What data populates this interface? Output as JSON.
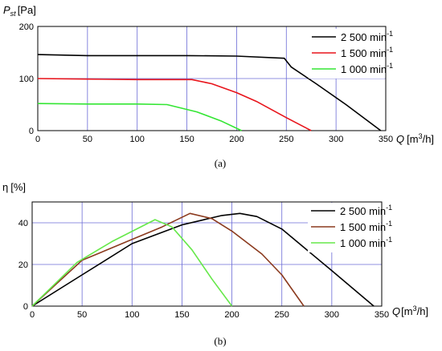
{
  "chart_data": [
    {
      "type": "line",
      "caption": "(a)",
      "ylabel": {
        "symbol": "P",
        "sub": "st",
        "unit": "[Pa]"
      },
      "xlabel": {
        "symbol": "Q",
        "unit_pre": "[m",
        "unit_sup": "3",
        "unit_post": "/h]"
      },
      "xlim": [
        0,
        350
      ],
      "ylim": [
        0,
        200
      ],
      "xticks": [
        "0",
        "50",
        "100",
        "150",
        "200",
        "250",
        "300",
        "350"
      ],
      "yticks": [
        "0",
        "100",
        "200"
      ],
      "legend_position": "top-right",
      "series": [
        {
          "name": "2 500 min",
          "sup": "-1",
          "color": "#000000",
          "x": [
            0,
            50,
            100,
            150,
            200,
            248,
            255,
            280,
            310,
            345
          ],
          "y": [
            146,
            144,
            144,
            144,
            143,
            139,
            122,
            90,
            50,
            0
          ]
        },
        {
          "name": "1 500 min",
          "sup": "-1",
          "color": "#e8141b",
          "x": [
            0,
            50,
            100,
            155,
            175,
            200,
            220,
            250,
            275
          ],
          "y": [
            100,
            99,
            98,
            98,
            90,
            73,
            56,
            25,
            0
          ]
        },
        {
          "name": "1 000 min",
          "sup": "-1",
          "color": "#33e633",
          "x": [
            0,
            50,
            100,
            130,
            160,
            185,
            205
          ],
          "y": [
            52,
            51,
            51,
            50,
            36,
            18,
            0
          ]
        }
      ]
    },
    {
      "type": "line",
      "caption": "(b)",
      "ylabel": {
        "symbol": "η",
        "unit": "[%]"
      },
      "xlabel": {
        "symbol": "Q",
        "unit_pre": "[m",
        "unit_sup": "3",
        "unit_post": "/h]"
      },
      "xlim": [
        0,
        350
      ],
      "ylim": [
        0,
        50
      ],
      "xticks": [
        "0",
        "50",
        "100",
        "150",
        "200",
        "250",
        "300",
        "350"
      ],
      "yticks": [
        "0",
        "20",
        "40"
      ],
      "legend_position": "top-right",
      "series": [
        {
          "name": "2 500 min",
          "sup": "-1",
          "color": "#000000",
          "x": [
            0,
            50,
            100,
            150,
            190,
            208,
            225,
            250,
            300,
            342
          ],
          "y": [
            0,
            15,
            30,
            39,
            43.5,
            44.5,
            43,
            37,
            17,
            0
          ]
        },
        {
          "name": "1 500 min",
          "sup": "-1",
          "color": "#8b3a1e",
          "x": [
            0,
            50,
            100,
            130,
            158,
            180,
            200,
            230,
            250,
            272
          ],
          "y": [
            0,
            22,
            32,
            38,
            44.5,
            42,
            36,
            25,
            15,
            0
          ]
        },
        {
          "name": "1 000 min",
          "sup": "-1",
          "color": "#66e84a",
          "x": [
            0,
            45,
            80,
            123,
            140,
            160,
            180,
            200
          ],
          "y": [
            0,
            21,
            31,
            41.5,
            38,
            27,
            13,
            0
          ]
        }
      ]
    }
  ]
}
